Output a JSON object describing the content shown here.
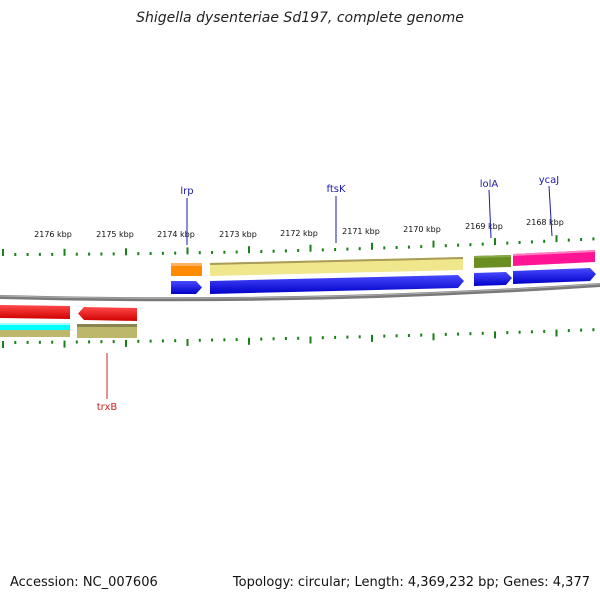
{
  "title": "Shigella dysenteriae Sd197, complete genome",
  "footer": {
    "accession": "Accession: NC_007606",
    "summary": "Topology: circular; Length: 4,369,232 bp; Genes: 4,377"
  },
  "colors": {
    "backbone": "#808080",
    "tick": "#1a7f1a",
    "forward_gene": "#0000ee",
    "reverse_gene": "#ee0000",
    "forward_label": "#1a1aaa",
    "reverse_label": "#cc2222"
  },
  "scale_labels": [
    "2176 kbp",
    "2175 kbp",
    "2174 kbp",
    "2173 kbp",
    "2172 kbp",
    "2171 kbp",
    "2170 kbp",
    "2169 kbp",
    "2168 kbp"
  ],
  "gene_labels": [
    {
      "name": "lrp",
      "strand": "forward"
    },
    {
      "name": "ftsK",
      "strand": "forward"
    },
    {
      "name": "lolA",
      "strand": "forward"
    },
    {
      "name": "ycaJ",
      "strand": "forward"
    },
    {
      "name": "trxB",
      "strand": "reverse"
    }
  ],
  "features": [
    {
      "id": "cog-lrp",
      "color": "#ff8c00"
    },
    {
      "id": "cog-ftsK",
      "color": "#f0e68c"
    },
    {
      "id": "cog-lolA",
      "color": "#6b8e23"
    },
    {
      "id": "cog-ycaJ",
      "color": "#ff1493"
    },
    {
      "id": "cog-trxB",
      "color": "#bdb76b"
    },
    {
      "id": "cog-left",
      "color": "#00ffff"
    }
  ]
}
